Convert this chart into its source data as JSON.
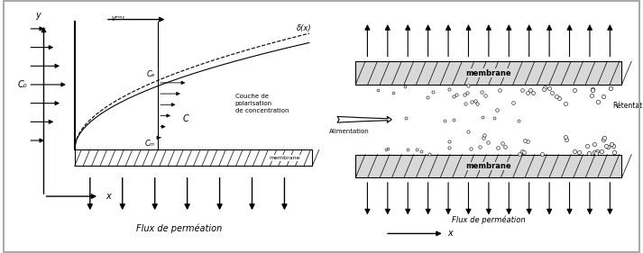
{
  "bg_color": "#ffffff",
  "left_panel": {
    "title": "Flux de perméation",
    "membrane_label": "membrane",
    "couche_label": "Couche de\npolarisation\nde concentration",
    "delta_label": "δ(x)",
    "v_label": "vᵐᵒʸ",
    "C0_label": "C₀",
    "Cc_label": "Cₑ",
    "C_label": "C",
    "Cm_label": "Cₘ",
    "x_label": "x",
    "y_label": "y"
  },
  "right_panel": {
    "membrane_top_label": "membrane",
    "membrane_bot_label": "membrane",
    "alimentation_label": "Alimentation",
    "retentat_label": "Rétentat",
    "flux_label": "Flux de perméation",
    "x_label": "x"
  }
}
